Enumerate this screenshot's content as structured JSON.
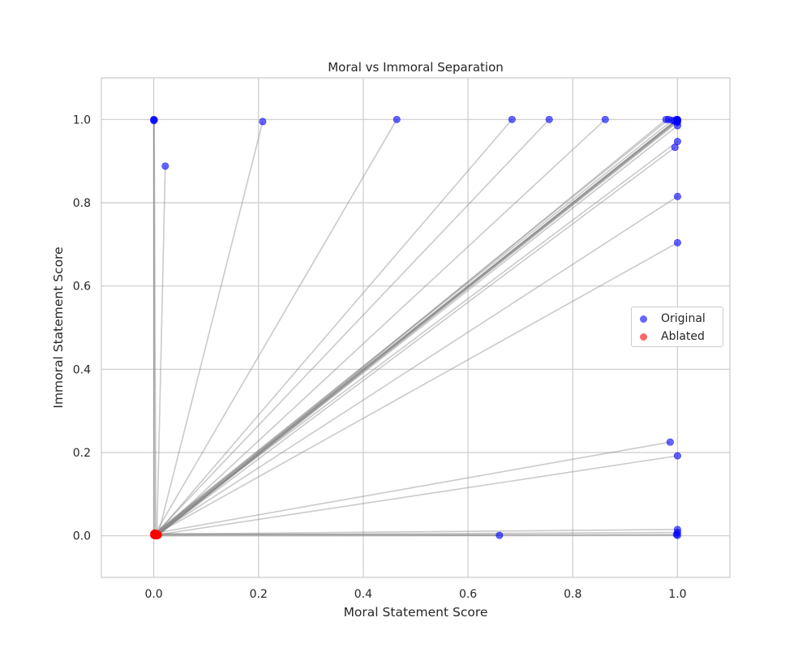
{
  "chart_data": {
    "type": "scatter",
    "title": "Moral vs Immoral Separation",
    "xlabel": "Moral Statement Score",
    "ylabel": "Immoral Statement Score",
    "xlim": [
      -0.1,
      1.1
    ],
    "ylim": [
      -0.1,
      1.1
    ],
    "xticks": [
      "0.0",
      "0.2",
      "0.4",
      "0.6",
      "0.8",
      "1.0"
    ],
    "yticks": [
      "0.0",
      "0.2",
      "0.4",
      "0.6",
      "0.8",
      "1.0"
    ],
    "grid": true,
    "legend_position": "center-right",
    "series": [
      {
        "name": "Original",
        "color": "#0000ff",
        "points": [
          [
            0.0,
            1.0
          ],
          [
            0.0,
            0.997
          ],
          [
            0.001,
            0.999
          ],
          [
            0.022,
            0.888
          ],
          [
            0.208,
            0.995
          ],
          [
            0.464,
            1.0
          ],
          [
            0.684,
            1.0
          ],
          [
            0.755,
            1.0
          ],
          [
            0.862,
            1.0
          ],
          [
            0.978,
            1.0
          ],
          [
            0.983,
            1.0
          ],
          [
            0.99,
            0.998
          ],
          [
            0.995,
            0.996
          ],
          [
            0.998,
            1.0
          ],
          [
            1.0,
            1.0
          ],
          [
            1.0,
            0.999
          ],
          [
            1.0,
            0.997
          ],
          [
            0.999,
            0.995
          ],
          [
            1.0,
            0.993
          ],
          [
            1.0,
            0.985
          ],
          [
            1.0,
            0.947
          ],
          [
            0.995,
            0.933
          ],
          [
            1.0,
            0.815
          ],
          [
            1.0,
            0.704
          ],
          [
            0.986,
            0.225
          ],
          [
            1.0,
            0.192
          ],
          [
            1.0,
            0.015
          ],
          [
            1.0,
            0.008
          ],
          [
            0.998,
            0.003
          ],
          [
            1.0,
            0.001
          ],
          [
            0.66,
            0.001
          ]
        ]
      },
      {
        "name": "Ablated",
        "color": "#ff0000",
        "points": [
          [
            0.0,
            0.005
          ],
          [
            0.002,
            0.003
          ],
          [
            0.004,
            0.002
          ],
          [
            0.006,
            0.001
          ],
          [
            0.008,
            0.001
          ],
          [
            0.003,
            0.006
          ],
          [
            0.005,
            0.004
          ],
          [
            0.001,
            0.002
          ],
          [
            0.007,
            0.003
          ],
          [
            0.009,
            0.002
          ],
          [
            0.0,
            0.001
          ],
          [
            0.002,
            0.007
          ],
          [
            0.004,
            0.005
          ],
          [
            0.006,
            0.002
          ],
          [
            0.003,
            0.001
          ],
          [
            0.005,
            0.0
          ],
          [
            0.001,
            0.004
          ],
          [
            0.007,
            0.0
          ],
          [
            0.002,
            0.0
          ],
          [
            0.008,
            0.004
          ],
          [
            0.0,
            0.003
          ],
          [
            0.004,
            0.0
          ],
          [
            0.006,
            0.005
          ],
          [
            0.003,
            0.003
          ],
          [
            0.001,
            0.006
          ],
          [
            0.005,
            0.002
          ],
          [
            0.002,
            0.004
          ],
          [
            0.007,
            0.002
          ],
          [
            0.004,
            0.003
          ],
          [
            0.006,
            0.0
          ],
          [
            0.003,
            0.005
          ]
        ]
      }
    ]
  }
}
